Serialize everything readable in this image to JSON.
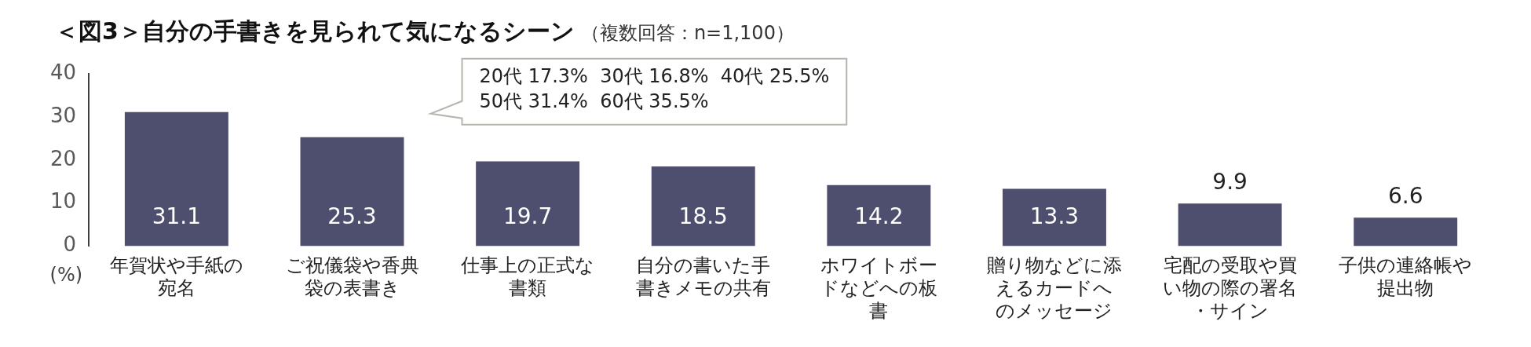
{
  "chart_data": {
    "type": "bar",
    "title": "＜図3＞自分の手書きを見られて気になるシーン",
    "subtitle": "（複数回答：n=1,100）",
    "ylabel": "(%)",
    "categories": [
      "年賀状や手紙の宛名",
      "ご祝儀袋や香典袋の表書き",
      "仕事上の正式な書類",
      "自分の書いた手書きメモの共有",
      "ホワイトボードなどへの板書",
      "贈り物などに添えるカードへのメッセージ",
      "宅配の受取や買い物の際の署名・サイン",
      "子供の連絡帳や提出物"
    ],
    "values": [
      31.1,
      25.3,
      19.7,
      18.5,
      14.2,
      13.3,
      9.9,
      6.6
    ],
    "color": "#4e4f6e",
    "ylim": [
      0,
      40
    ],
    "yticks": [
      0,
      10,
      20,
      30,
      40
    ],
    "grid": false,
    "legend": false,
    "data_labels": true,
    "annotations": [
      "20代 17.3%  30代 16.8%  40代 25.5%\n50代 31.4%  60代 35.5%"
    ]
  }
}
